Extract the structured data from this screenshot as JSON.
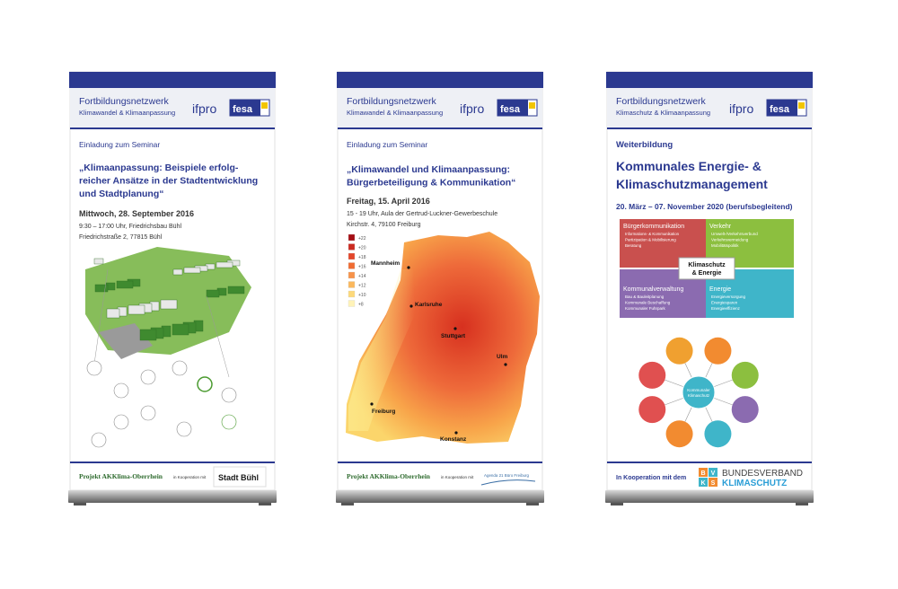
{
  "banners": [
    {
      "header": {
        "network": "Fortbildungsnetzwerk",
        "topic": "Klimawandel & Klimaanpassung",
        "logo_ifpro": "ifpro",
        "logo_fesa": "fesa"
      },
      "kicker": "Einladung zum Seminar",
      "headline": [
        "„Klimaanpassung: Beispiele erfolg-",
        "reicher Ansätze in der Stadtentwicklung",
        "und Stadtplanung“"
      ],
      "date": "Mittwoch, 28. September 2016",
      "details": [
        "9:30 – 17:00 Uhr, Friedrichsbau Bühl",
        "Friedrichstraße 2, 77815 Bühl"
      ],
      "footer": {
        "project": "Projekt AKKlima-Oberrhein",
        "cooperation": "in Kooperation mit",
        "partner": "Stadt Bühl"
      }
    },
    {
      "header": {
        "network": "Fortbildungsnetzwerk",
        "topic": "Klimawandel & Klimaanpassung",
        "logo_ifpro": "ifpro",
        "logo_fesa": "fesa"
      },
      "kicker": "Einladung zum Seminar",
      "headline": [
        "„Klimawandel und Klimaanpassung:",
        "Bürgerbeteiligung & Kommunikation“"
      ],
      "date": "Freitag, 15. April 2016",
      "details": [
        "15 - 19 Uhr, Aula der Gertrud-Luckner-Gewerbeschule",
        "Kirchstr. 4, 79100 Freiburg"
      ],
      "map": {
        "legend": [
          "+22",
          "+20",
          "+18",
          "+16",
          "+14",
          "+12",
          "+10",
          "+8"
        ],
        "cities": [
          "Mannheim",
          "Karlsruhe",
          "Stuttgart",
          "Ulm",
          "Freiburg",
          "Konstanz"
        ]
      },
      "footer": {
        "project": "Projekt AKKlima-Oberrhein",
        "cooperation": "in Kooperation mit",
        "partner": "Agenda 21 Büro Freiburg"
      }
    },
    {
      "header": {
        "network": "Fortbildungsnetzwerk",
        "topic": "Klimaschutz & Klimaanpassung",
        "logo_ifpro": "ifpro",
        "logo_fesa": "fesa"
      },
      "kicker": "Weiterbildung",
      "headline": [
        "Kommunales Energie- &",
        "Klimaschutzmanagement"
      ],
      "date": "20. März – 07. November 2020 (berufsbegleitend)",
      "diagram": {
        "quadrants": [
          {
            "title": "Bürgerkommunikation",
            "items": [
              "Informations- & Kommunikation",
              "Partizipation & Mobilisierung",
              "Beratung"
            ]
          },
          {
            "title": "Verkehr",
            "items": [
              "Umwelt-/Verkehrsverbund",
              "Verkehrsvermeidung",
              "Mobilitätspolitik"
            ]
          },
          {
            "title": "Kommunalverwaltung",
            "items": [
              "Bau & Bauleitplanung",
              "Kommunale Beschaffung",
              "Kommunaler Fuhrpark"
            ]
          },
          {
            "title": "Energie",
            "items": [
              "Energieversorgung",
              "Energiesparen",
              "Energieeffizienz"
            ]
          }
        ],
        "center": [
          "Klimaschutz",
          "& Energie"
        ],
        "network_center": [
          "Kommunaler",
          "Klimaschutz"
        ]
      },
      "footer": {
        "cooperation": "In Kooperation mit dem",
        "logo_letters": [
          "B",
          "V",
          "K",
          "S"
        ],
        "partner": [
          "BUNDESVERBAND",
          "KLIMASCHUTZ"
        ]
      }
    }
  ]
}
